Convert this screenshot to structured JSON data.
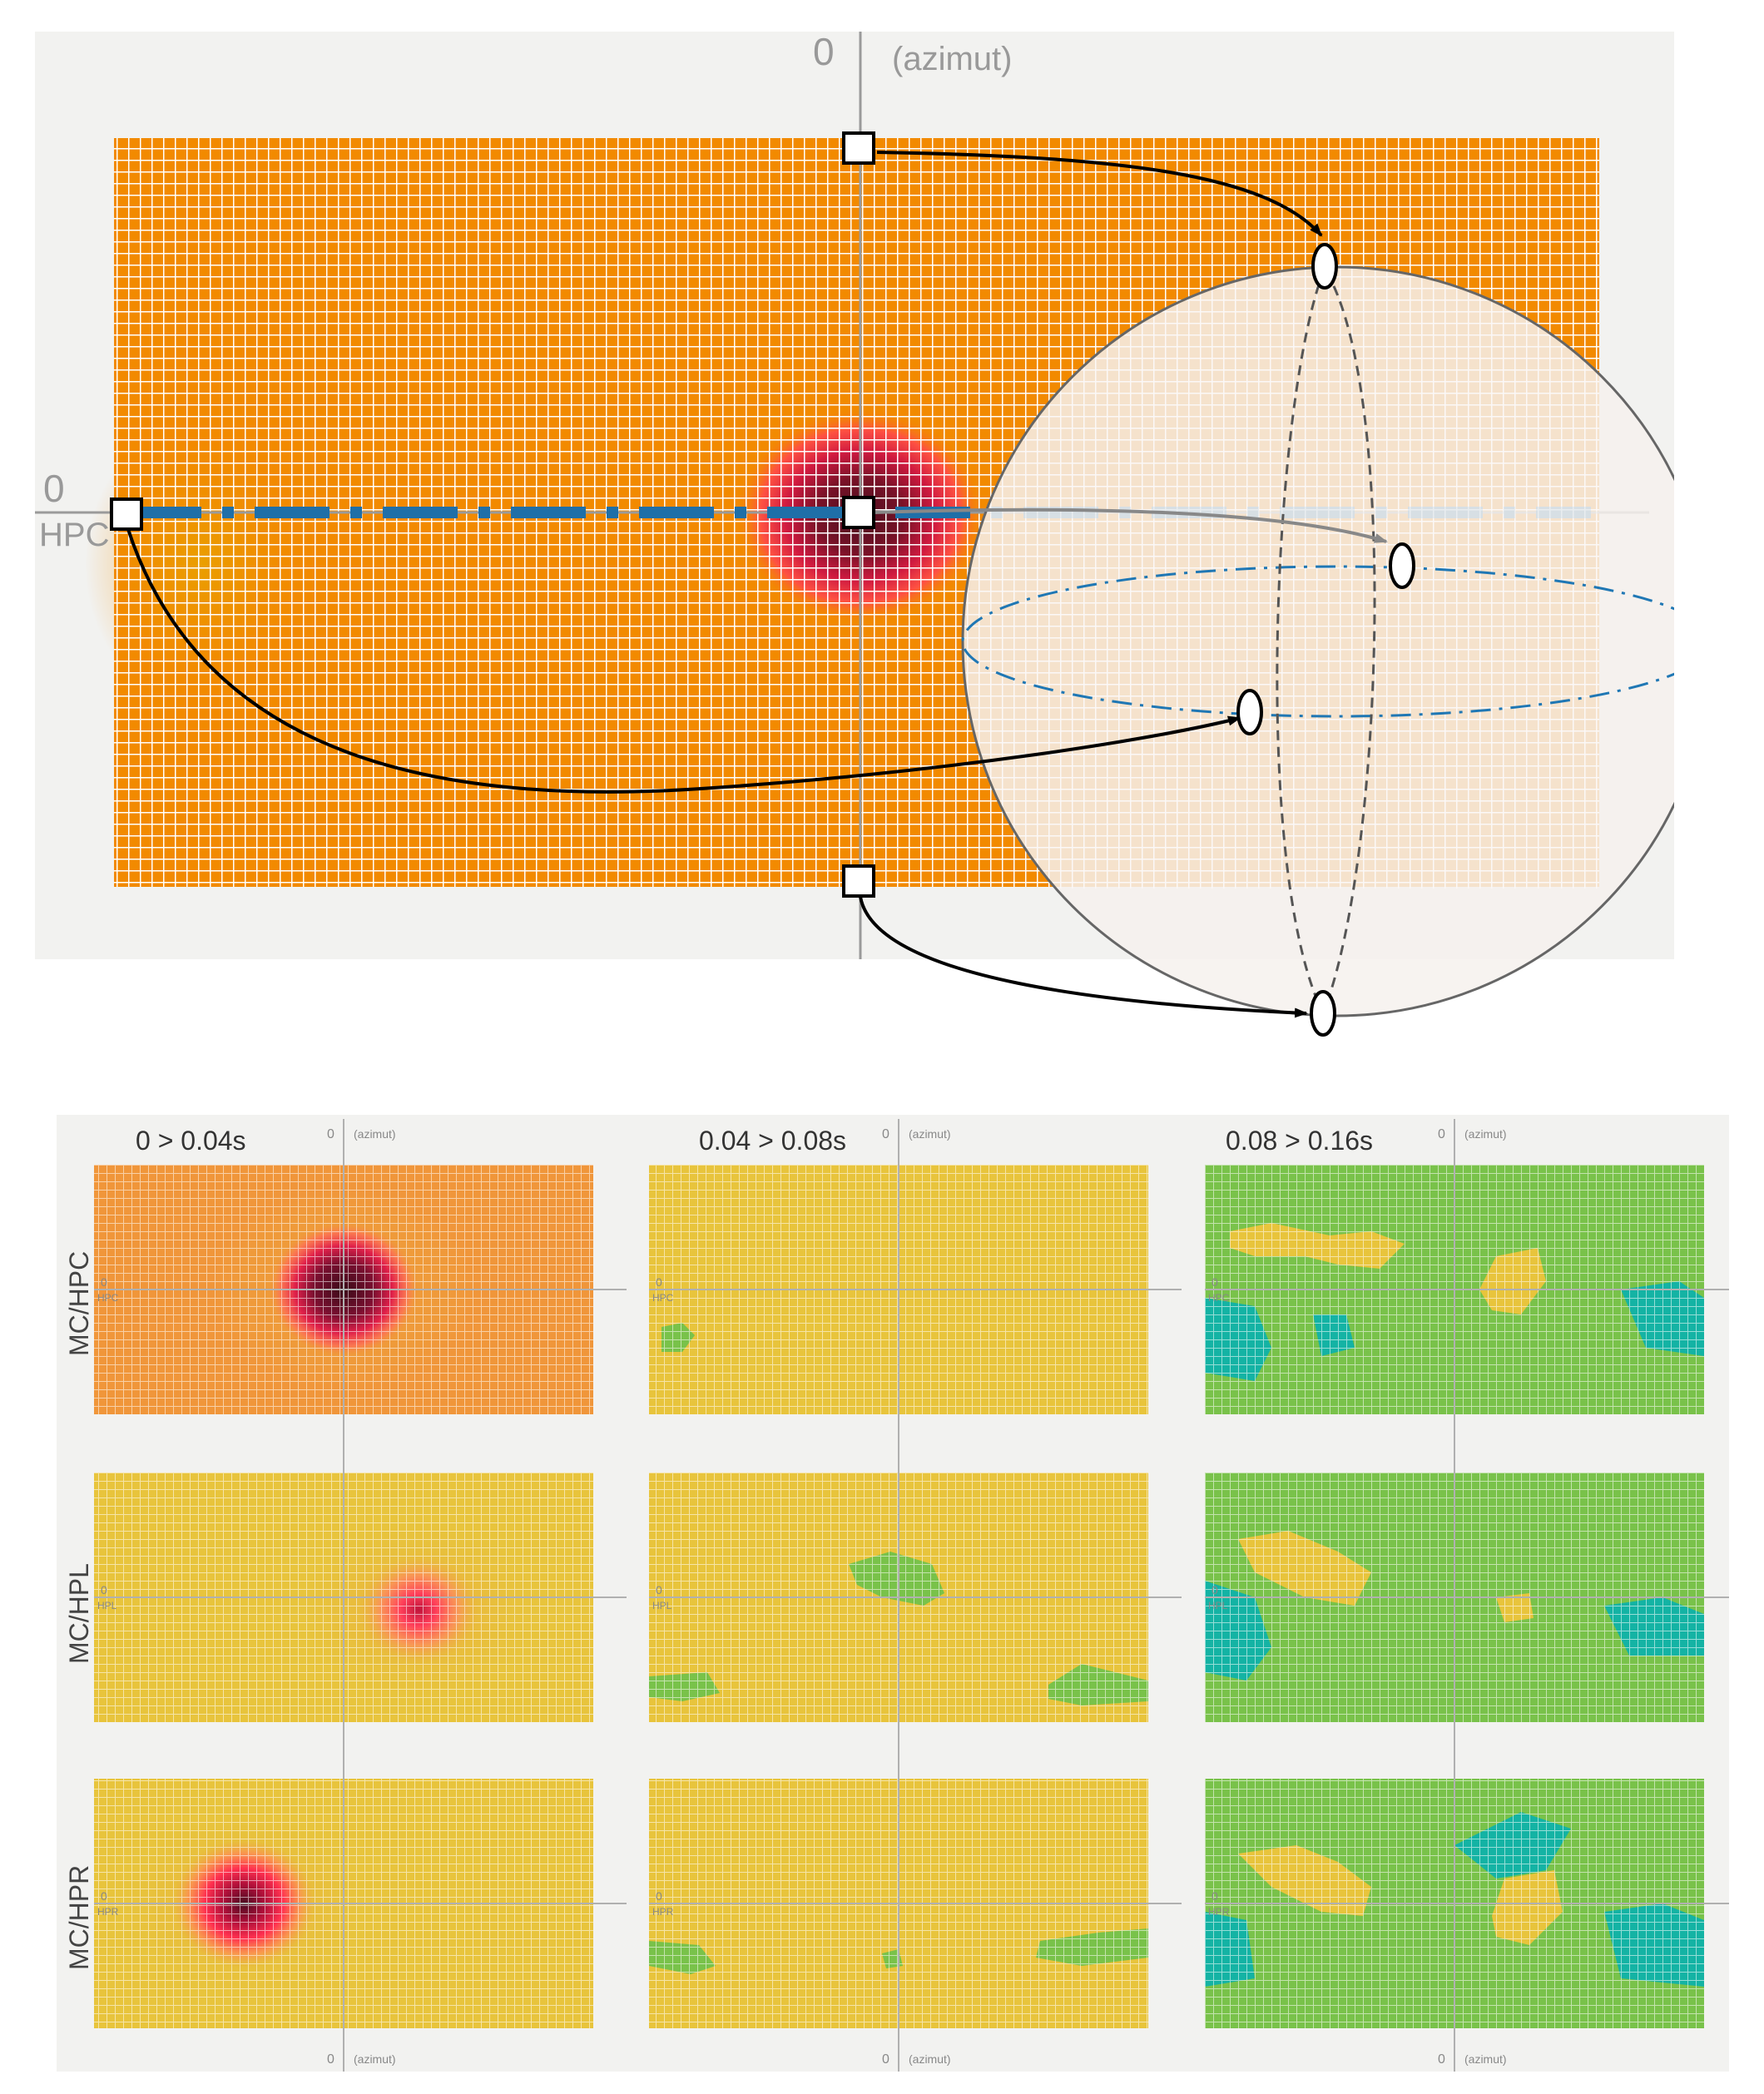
{
  "top": {
    "zero_top": "0",
    "azimut_label": "(azimut)",
    "zero_left": "0",
    "hpc_label": "HPC"
  },
  "chart_data": [
    {
      "type": "heatmap",
      "title": "",
      "xlabel": "(azimut)",
      "ylabel": "HPC",
      "grid": true,
      "hotspot": {
        "x": 0,
        "y": 0,
        "intensity": 1.0
      },
      "overlay": "sphere projection of the grid with arrows mapping the edge and centre points onto the sphere"
    },
    {
      "type": "heatmap",
      "columns": [
        "0 > 0.04s",
        "0.04 > 0.08s",
        "0.08 > 0.16s"
      ],
      "rows": [
        "MC/HPC",
        "MC/HPL",
        "MC/HPR"
      ],
      "panels": [
        {
          "row": "MC/HPC",
          "column": "0 > 0.04s",
          "base": "orange",
          "hotspot": {
            "x": 0,
            "y": 0,
            "intensity": 1.0
          }
        },
        {
          "row": "MC/HPC",
          "column": "0.04 > 0.08s",
          "base": "yellow",
          "hotspot": null
        },
        {
          "row": "MC/HPC",
          "column": "0.08 > 0.16s",
          "base": "green",
          "hotspot": null
        },
        {
          "row": "MC/HPL",
          "column": "0 > 0.04s",
          "base": "yellow",
          "hotspot": {
            "x": 0.3,
            "y": -0.1,
            "intensity": 0.6
          }
        },
        {
          "row": "MC/HPL",
          "column": "0.04 > 0.08s",
          "base": "yellow",
          "hotspot": null
        },
        {
          "row": "MC/HPL",
          "column": "0.08 > 0.16s",
          "base": "green",
          "hotspot": null
        },
        {
          "row": "MC/HPR",
          "column": "0 > 0.04s",
          "base": "yellow",
          "hotspot": {
            "x": -0.4,
            "y": 0,
            "intensity": 0.9
          }
        },
        {
          "row": "MC/HPR",
          "column": "0.04 > 0.08s",
          "base": "yellow",
          "hotspot": null
        },
        {
          "row": "MC/HPR",
          "column": "0.08 > 0.16s",
          "base": "green",
          "hotspot": null
        }
      ],
      "axis_zero": "0",
      "axis_azimut": "(azimut)",
      "row_axis_labels": [
        "HPC",
        "HPL",
        "HPR"
      ]
    }
  ],
  "colors": {
    "orange": "#f28a00",
    "yellow": "#e8c43c",
    "green": "#79c24a",
    "teal": "#14b3a4",
    "hot_dark": "#5a1020",
    "hot_red": "#e5224a",
    "equator_blue": "#1f77b4"
  }
}
